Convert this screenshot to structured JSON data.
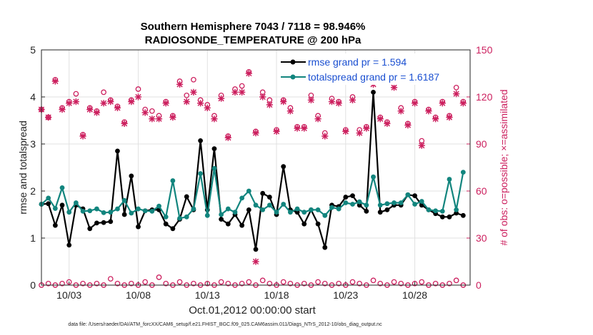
{
  "chart_data": {
    "type": "line",
    "title": "Southern Hemisphere 7043 / 7118 = 98.946%",
    "subtitle": "RADIOSONDE_TEMPERATURE @ 200 hPa",
    "xlabel": "Oct.01,2012 00:00:00 start",
    "ylabel": "rmse and totalspread",
    "ylabel_right": "# of obs: o=possible; ×=assimilated",
    "footnote": "data file: /Users/raeder/DAI/ATM_forcXX/CAM6_setup/f.e21.FHIST_BGC.f09_025.CAM6assim.011/Diags_NTrS_2012-10/obs_diag_output.nc",
    "x_tick_labels": [
      "10/03",
      "10/08",
      "10/13",
      "10/18",
      "10/23",
      "10/28"
    ],
    "x_tick_days": [
      3,
      8,
      13,
      18,
      23,
      28
    ],
    "xlim": [
      1.0,
      32.0
    ],
    "ylim": [
      0,
      5
    ],
    "y_ticks": [
      0,
      1,
      2,
      3,
      4,
      5
    ],
    "ylim_right": [
      0,
      150
    ],
    "y_ticks_right": [
      0,
      30,
      60,
      90,
      120,
      150
    ],
    "legend": [
      {
        "label": "rmse grand pr = 1.594",
        "color": "#000000"
      },
      {
        "label": "totalspread grand pr = 1.6187",
        "color": "#12857e"
      }
    ],
    "colors": {
      "rmse": "#000000",
      "spread": "#12857e",
      "obs": "#cc1f5e"
    },
    "series": [
      {
        "name": "rmse",
        "axis": "left",
        "x": [
          1.0,
          1.5,
          2.0,
          2.5,
          3.0,
          3.5,
          4.0,
          4.5,
          5.0,
          5.5,
          6.0,
          6.5,
          7.0,
          7.5,
          8.0,
          8.5,
          9.0,
          9.5,
          10.0,
          10.5,
          11.0,
          11.5,
          12.0,
          12.5,
          13.0,
          13.5,
          14.0,
          14.5,
          15.0,
          15.5,
          16.0,
          16.5,
          17.0,
          17.5,
          18.0,
          18.5,
          19.0,
          19.5,
          20.0,
          20.5,
          21.0,
          21.5,
          22.0,
          22.5,
          23.0,
          23.5,
          24.0,
          24.5,
          25.0,
          25.5,
          26.0,
          26.5,
          27.0,
          27.5,
          28.0,
          28.5,
          29.0,
          29.5,
          30.0,
          30.5,
          31.0,
          31.5
        ],
        "values": [
          1.72,
          1.73,
          1.27,
          1.7,
          0.85,
          1.7,
          1.62,
          1.2,
          1.32,
          1.33,
          1.35,
          2.85,
          1.5,
          2.32,
          1.24,
          1.58,
          1.6,
          1.6,
          1.3,
          1.2,
          1.4,
          1.88,
          1.6,
          3.07,
          1.6,
          2.9,
          1.4,
          1.3,
          1.5,
          1.27,
          1.6,
          0.76,
          1.95,
          1.87,
          1.5,
          2.52,
          1.6,
          1.55,
          1.3,
          1.6,
          1.3,
          0.8,
          1.7,
          1.67,
          1.87,
          1.9,
          1.7,
          1.57,
          4.1,
          1.55,
          1.6,
          1.7,
          1.7,
          1.92,
          1.9,
          1.7,
          1.6,
          1.52,
          1.45,
          1.45,
          1.53,
          1.48
        ]
      },
      {
        "name": "totalspread",
        "axis": "left",
        "x": [
          1.0,
          1.5,
          2.0,
          2.5,
          3.0,
          3.5,
          4.0,
          4.5,
          5.0,
          5.5,
          6.0,
          6.5,
          7.0,
          7.5,
          8.0,
          8.5,
          9.0,
          9.5,
          10.0,
          10.5,
          11.0,
          11.5,
          12.0,
          12.5,
          13.0,
          13.5,
          14.0,
          14.5,
          15.0,
          15.5,
          16.0,
          16.5,
          17.0,
          17.5,
          18.0,
          18.5,
          19.0,
          19.5,
          20.0,
          20.5,
          21.0,
          21.5,
          22.0,
          22.5,
          23.0,
          23.5,
          24.0,
          24.5,
          25.0,
          25.5,
          26.0,
          26.5,
          27.0,
          27.5,
          28.0,
          28.5,
          29.0,
          29.5,
          30.0,
          30.5,
          31.0,
          31.5
        ],
        "values": [
          1.72,
          1.85,
          1.63,
          2.07,
          1.55,
          1.75,
          1.57,
          1.58,
          1.62,
          1.54,
          1.55,
          1.62,
          1.8,
          1.53,
          1.62,
          1.58,
          1.57,
          1.68,
          1.45,
          2.22,
          1.42,
          1.45,
          1.62,
          2.37,
          1.48,
          2.48,
          1.5,
          1.62,
          1.55,
          1.85,
          2.0,
          1.7,
          1.6,
          1.7,
          1.55,
          1.72,
          1.55,
          1.62,
          1.55,
          1.6,
          1.6,
          1.48,
          1.65,
          1.62,
          1.75,
          1.72,
          1.77,
          1.7,
          2.3,
          1.7,
          1.73,
          1.75,
          1.75,
          1.92,
          1.72,
          1.78,
          1.6,
          1.58,
          1.57,
          2.25,
          1.6,
          2.4
        ]
      },
      {
        "name": "obs possible",
        "axis": "right",
        "marker": "o",
        "x": [
          1.0,
          1.5,
          2.0,
          2.5,
          3.0,
          3.5,
          4.0,
          4.5,
          5.0,
          5.5,
          6.0,
          6.5,
          7.0,
          7.5,
          8.0,
          8.5,
          9.0,
          9.5,
          10.0,
          10.5,
          11.0,
          11.5,
          12.0,
          12.5,
          13.0,
          13.5,
          14.0,
          14.5,
          15.0,
          15.5,
          16.0,
          16.5,
          17.0,
          17.5,
          18.0,
          18.5,
          19.0,
          19.5,
          20.0,
          20.5,
          21.0,
          21.5,
          22.0,
          22.5,
          23.0,
          23.5,
          24.0,
          24.5,
          25.0,
          25.5,
          26.0,
          26.5,
          27.0,
          27.5,
          28.0,
          28.5,
          29.0,
          29.5,
          30.0,
          30.5,
          31.0,
          31.5
        ],
        "values": [
          112,
          107,
          131,
          113,
          117,
          122,
          96,
          113,
          111,
          123,
          118,
          114,
          104,
          118,
          125,
          112,
          111,
          108,
          117,
          108,
          130,
          121,
          131,
          118,
          115,
          108,
          121,
          95,
          125,
          127,
          136,
          98,
          123,
          118,
          99,
          118,
          113,
          101,
          101,
          121,
          108,
          97,
          119,
          117,
          99,
          120,
          99,
          101,
          130,
          107,
          104,
          128,
          113,
          103,
          117,
          92,
          112,
          107,
          117,
          108,
          126,
          117
        ]
      },
      {
        "name": "obs assimilated",
        "axis": "right",
        "marker": "x",
        "x": [
          1.0,
          1.5,
          2.0,
          2.5,
          3.0,
          3.5,
          4.0,
          4.5,
          5.0,
          5.5,
          6.0,
          6.5,
          7.0,
          7.5,
          8.0,
          8.5,
          9.0,
          9.5,
          10.0,
          10.5,
          11.0,
          11.5,
          12.0,
          12.5,
          13.0,
          13.5,
          14.0,
          14.5,
          15.0,
          15.5,
          16.0,
          16.5,
          17.0,
          17.5,
          18.0,
          18.5,
          19.0,
          19.5,
          20.0,
          20.5,
          21.0,
          21.5,
          22.0,
          22.5,
          23.0,
          23.5,
          24.0,
          24.5,
          25.0,
          25.5,
          26.0,
          26.5,
          27.0,
          27.5,
          28.0,
          28.5,
          29.0,
          29.5,
          30.0,
          30.5,
          31.0,
          31.5
        ],
        "values": [
          112,
          107,
          130,
          112,
          116,
          117,
          95,
          112,
          110,
          116,
          117,
          113,
          103,
          117,
          120,
          110,
          106,
          106,
          116,
          107,
          128,
          117,
          123,
          116,
          113,
          106,
          119,
          94,
          123,
          123,
          135,
          97,
          120,
          115,
          98,
          117,
          111,
          100,
          100,
          118,
          106,
          95,
          117,
          116,
          98,
          118,
          97,
          100,
          128,
          106,
          103,
          126,
          111,
          102,
          116,
          89,
          111,
          106,
          116,
          107,
          122,
          116
        ]
      },
      {
        "name": "obs near zero (o)",
        "axis": "right",
        "marker": "o",
        "x": [
          1.0,
          1.5,
          2.0,
          2.5,
          3.0,
          3.5,
          4.0,
          4.5,
          5.0,
          5.5,
          6.0,
          6.5,
          7.0,
          7.5,
          8.0,
          8.5,
          9.0,
          9.5,
          10.0,
          10.5,
          11.0,
          11.5,
          12.0,
          12.5,
          13.0,
          13.5,
          14.0,
          14.5,
          15.0,
          15.5,
          16.0,
          16.5,
          17.0,
          17.5,
          18.0,
          18.5,
          19.0,
          19.5,
          20.0,
          20.5,
          21.0,
          21.5,
          22.0,
          22.5,
          23.0,
          23.5,
          24.0,
          24.5,
          25.0,
          25.5,
          26.0,
          26.5,
          27.0,
          27.5,
          28.0,
          28.5,
          29.0,
          29.5,
          30.0,
          30.5,
          31.0,
          31.5
        ],
        "values": [
          0,
          1,
          0,
          1,
          2,
          0,
          1,
          0,
          1,
          0,
          4,
          1,
          0,
          1,
          0,
          2,
          0,
          5,
          1,
          0,
          2,
          0,
          1,
          0,
          1,
          0,
          2,
          1,
          0,
          1,
          2,
          0,
          3,
          1,
          0,
          2,
          1,
          0,
          1,
          0,
          2,
          1,
          0,
          1,
          0,
          2,
          1,
          0,
          3,
          1,
          0,
          2,
          1,
          0,
          1,
          2,
          0,
          1,
          0,
          1,
          3,
          0
        ]
      }
    ],
    "outlier": {
      "x": 16.5,
      "value": 15,
      "axis": "right",
      "marker": "x"
    }
  }
}
